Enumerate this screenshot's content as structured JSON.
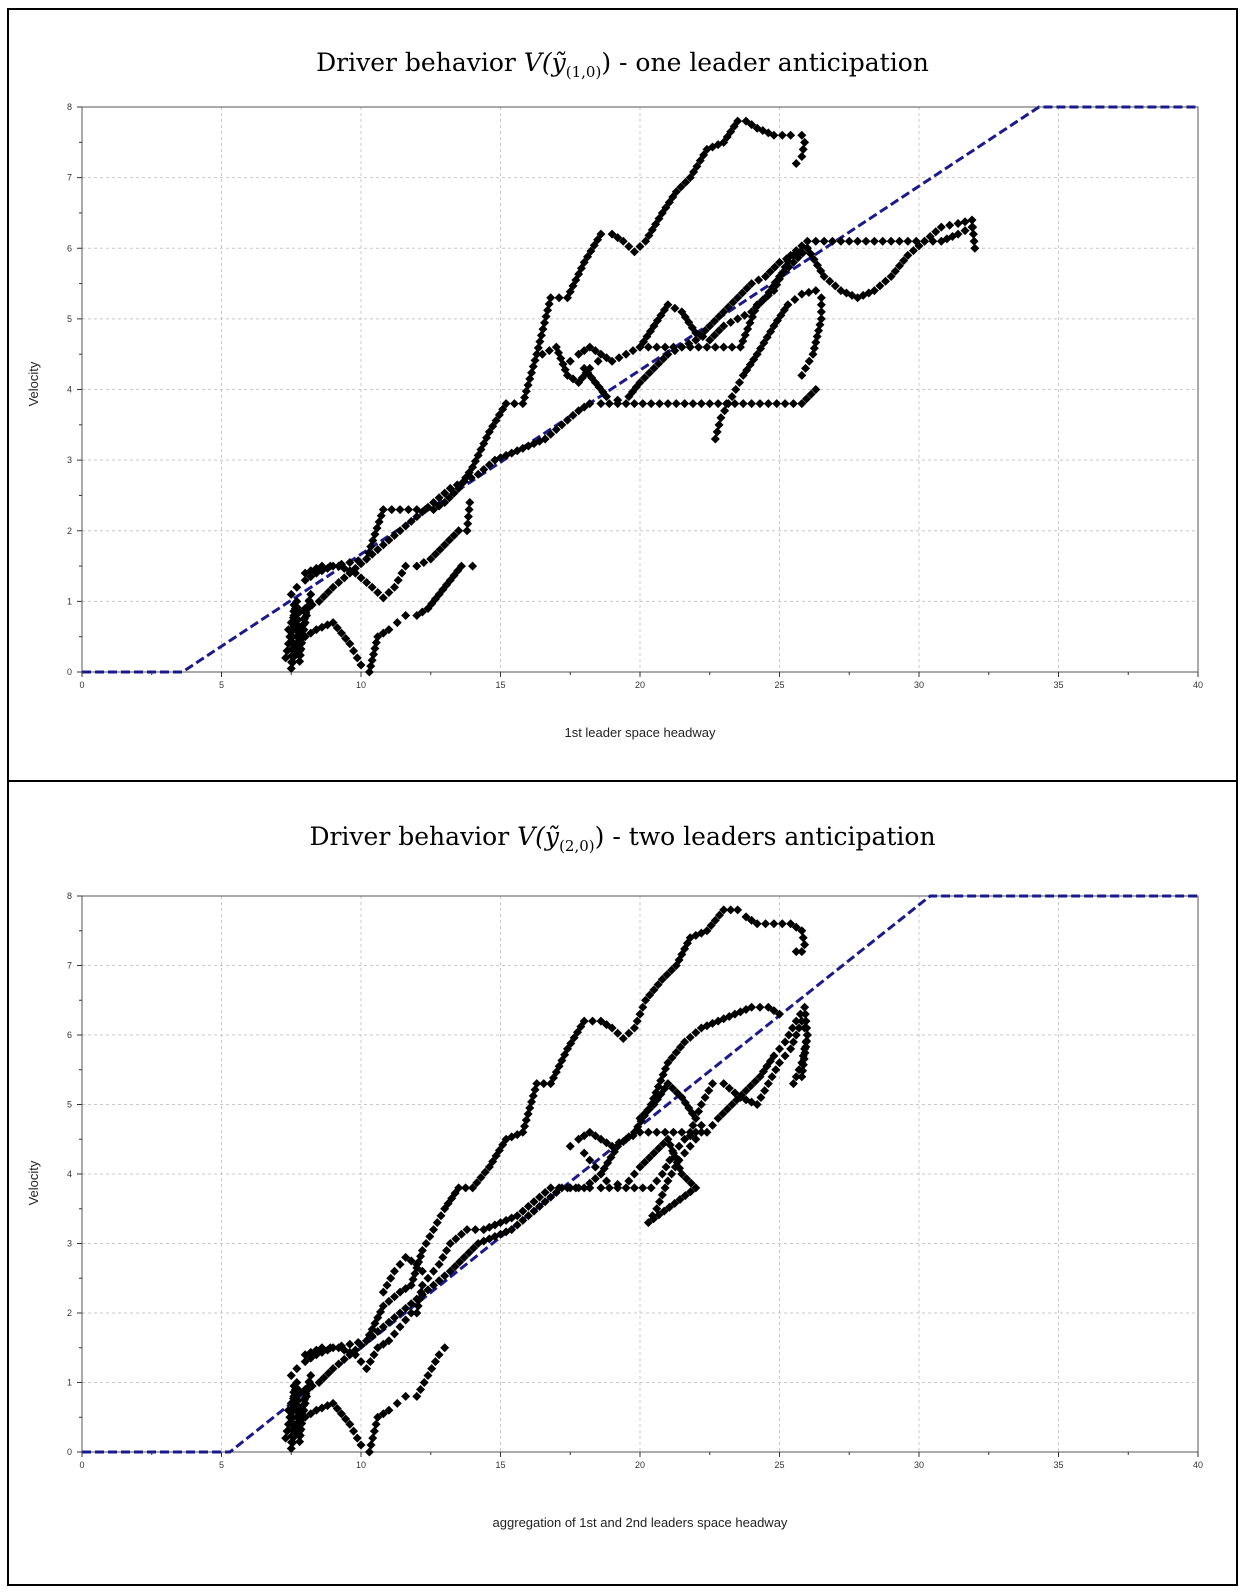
{
  "charts": [
    {
      "title_prefix": "Driver behavior ",
      "title_fn": "V(ỹ",
      "title_sub": "(1,0)",
      "title_close": ")",
      "title_suffix": " - one leader anticipation",
      "xlabel": "1st leader space headway",
      "ylabel": "Velocity"
    },
    {
      "title_prefix": "Driver behavior ",
      "title_fn": "V(ỹ",
      "title_sub": "(2,0)",
      "title_close": ")",
      "title_suffix": " - two leaders anticipation",
      "xlabel": "aggregation of 1st and 2nd leaders space headway",
      "ylabel": "Velocity"
    }
  ],
  "chart_data": [
    {
      "type": "scatter",
      "title": "Driver behavior V(ỹ(1,0)) - one leader anticipation",
      "xlabel": "1st leader space headway",
      "ylabel": "Velocity",
      "xlim": [
        0,
        40
      ],
      "ylim": [
        0,
        8
      ],
      "xticks": [
        0,
        5,
        10,
        15,
        20,
        25,
        30,
        35,
        40
      ],
      "yticks": [
        0,
        1,
        2,
        3,
        4,
        5,
        6,
        7,
        8
      ],
      "grid": true,
      "colors": {
        "points": "#000000",
        "model_line": "#1a1a8c"
      },
      "model_line": {
        "x": [
          0,
          3.6,
          34.3,
          40
        ],
        "y": [
          0,
          0,
          8,
          8
        ],
        "style": "dashed"
      },
      "series": [
        {
          "x": [
            7.5,
            7.7,
            8.0,
            8.4,
            9.0,
            9.6,
            10.2,
            10.8,
            11.4,
            12.0,
            12.6,
            13.0,
            13.5,
            14.0,
            14.6,
            15.2,
            15.8,
            16.3,
            16.8,
            17.4,
            18.0,
            18.6,
            19.0,
            19.4,
            19.8,
            20.2,
            20.8,
            21.3,
            21.8,
            22.4,
            23.0,
            23.5,
            23.8,
            24.2,
            24.8,
            25.4,
            25.8,
            25.9,
            25.8,
            25.6
          ],
          "y": [
            1.1,
            1.2,
            1.3,
            1.4,
            1.5,
            1.55,
            1.6,
            2.3,
            2.3,
            2.3,
            2.3,
            2.4,
            2.6,
            2.9,
            3.4,
            3.8,
            3.8,
            4.5,
            5.3,
            5.3,
            5.8,
            6.2,
            6.2,
            6.1,
            5.95,
            6.1,
            6.5,
            6.8,
            7.0,
            7.4,
            7.5,
            7.8,
            7.8,
            7.7,
            7.6,
            7.6,
            7.6,
            7.5,
            7.3,
            7.2
          ]
        },
        {
          "x": [
            7.4,
            7.6,
            8.0,
            8.5,
            9.0,
            9.6,
            10.2,
            10.8,
            11.4,
            12.0,
            12.6,
            13.2,
            13.7,
            14.2,
            14.8,
            15.4,
            16.0,
            16.6,
            17.2,
            17.8,
            18.2,
            18.6,
            19.2,
            19.8,
            20.4,
            21.0,
            21.6,
            22.2,
            22.8,
            23.4,
            24.0,
            24.6,
            25.2,
            25.8,
            26.3
          ],
          "y": [
            0.6,
            0.8,
            0.9,
            1.0,
            1.2,
            1.4,
            1.6,
            1.8,
            2.0,
            2.2,
            2.4,
            2.6,
            2.7,
            2.8,
            3.0,
            3.1,
            3.2,
            3.3,
            3.5,
            3.7,
            3.8,
            3.8,
            3.8,
            3.8,
            3.8,
            3.8,
            3.8,
            3.8,
            3.8,
            3.8,
            3.8,
            3.8,
            3.8,
            3.8,
            4.0
          ]
        },
        {
          "x": [
            25.8,
            26.2,
            26.5,
            26.5,
            26.3,
            25.8,
            25.3,
            24.8,
            24.2,
            23.7,
            23.3,
            22.9,
            22.7
          ],
          "y": [
            4.2,
            4.5,
            5.0,
            5.3,
            5.4,
            5.35,
            5.2,
            4.9,
            4.5,
            4.2,
            3.9,
            3.6,
            3.3
          ]
        },
        {
          "x": [
            17.5,
            17.8,
            18.2,
            18.6,
            19.0,
            19.5,
            20.0,
            20.6,
            21.2,
            21.8,
            22.4,
            23.0,
            23.6,
            24.2,
            24.8,
            25.4,
            26.0,
            26.6,
            27.2,
            27.8,
            28.4,
            29.0,
            29.6,
            30.2,
            30.8,
            31.4,
            31.9
          ],
          "y": [
            4.4,
            4.5,
            4.6,
            4.5,
            4.4,
            4.5,
            4.6,
            4.6,
            4.6,
            4.6,
            4.6,
            4.6,
            4.6,
            5.2,
            5.4,
            5.9,
            6.1,
            6.1,
            6.1,
            6.1,
            6.1,
            6.1,
            6.1,
            6.1,
            6.1,
            6.2,
            6.3
          ]
        },
        {
          "x": [
            20.0,
            20.5,
            21.0,
            21.5,
            22.0,
            22.5,
            23.0,
            23.5,
            24.0,
            24.5,
            25.0,
            25.5,
            26.0,
            26.6,
            27.2,
            27.8,
            28.4,
            29.0,
            29.6,
            30.2,
            30.8,
            31.4,
            31.9,
            32.0
          ],
          "y": [
            4.6,
            4.9,
            5.2,
            5.1,
            4.8,
            4.7,
            4.9,
            5.0,
            5.1,
            5.3,
            5.6,
            5.8,
            6.0,
            5.6,
            5.4,
            5.3,
            5.4,
            5.6,
            5.9,
            6.1,
            6.3,
            6.35,
            6.4,
            6.0
          ]
        },
        {
          "x": [
            18.0,
            18.4,
            18.8,
            19.2,
            19.6,
            20.0,
            20.5,
            21.0,
            21.5,
            22.0,
            22.5,
            23.0,
            23.5,
            24.0,
            24.5,
            25.0,
            25.5,
            26.0
          ],
          "y": [
            4.3,
            4.1,
            3.9,
            3.85,
            3.9,
            4.1,
            4.3,
            4.5,
            4.6,
            4.7,
            4.9,
            5.1,
            5.3,
            5.5,
            5.6,
            5.8,
            5.9,
            6.0
          ]
        },
        {
          "x": [
            7.6,
            8.0,
            8.4,
            9.0,
            9.6,
            10.0,
            10.3,
            10.6,
            11.0,
            11.3,
            11.6,
            12.0,
            12.4,
            12.8,
            13.2,
            13.6,
            14.0
          ],
          "y": [
            0.4,
            0.5,
            0.6,
            0.7,
            0.4,
            0.1,
            0.0,
            0.5,
            0.6,
            0.7,
            0.8,
            0.8,
            0.9,
            1.1,
            1.3,
            1.5,
            1.5
          ]
        },
        {
          "x": [
            8.0,
            8.6,
            9.2,
            9.8,
            10.4,
            10.8,
            11.2,
            11.6,
            12.0,
            12.5,
            13.0,
            13.5,
            13.8,
            13.9
          ],
          "y": [
            1.4,
            1.5,
            1.5,
            1.4,
            1.2,
            1.05,
            1.2,
            1.5,
            1.5,
            1.6,
            1.8,
            2.0,
            2.0,
            2.4
          ]
        },
        {
          "x": [
            7.3,
            7.4,
            7.5,
            7.6,
            7.7,
            7.8,
            7.9,
            8.0,
            8.1,
            8.2,
            7.5,
            7.6,
            7.8,
            8.0
          ],
          "y": [
            0.2,
            0.4,
            0.6,
            0.8,
            1.0,
            0.3,
            0.5,
            0.7,
            0.9,
            1.1,
            0.05,
            0.95,
            0.15,
            0.85
          ]
        },
        {
          "x": [
            16.5,
            17.0,
            17.4,
            17.8,
            18.2,
            18.5
          ],
          "y": [
            4.5,
            4.6,
            4.2,
            4.1,
            4.3,
            4.4
          ]
        }
      ]
    },
    {
      "type": "scatter",
      "title": "Driver behavior V(ỹ(2,0)) - two leaders anticipation",
      "xlabel": "aggregation of 1st and 2nd leaders space headway",
      "ylabel": "Velocity",
      "xlim": [
        0,
        40
      ],
      "ylim": [
        0,
        8
      ],
      "xticks": [
        0,
        5,
        10,
        15,
        20,
        25,
        30,
        35,
        40
      ],
      "yticks": [
        0,
        1,
        2,
        3,
        4,
        5,
        6,
        7,
        8
      ],
      "grid": true,
      "colors": {
        "points": "#000000",
        "model_line": "#1a1a8c"
      },
      "model_line": {
        "x": [
          0,
          5.3,
          30.4,
          40
        ],
        "y": [
          0,
          0,
          8,
          8
        ],
        "style": "dashed"
      },
      "series": [
        {
          "x": [
            7.5,
            7.7,
            8.0,
            8.4,
            9.0,
            9.6,
            10.2,
            10.8,
            11.4,
            11.8,
            12.2,
            12.6,
            13.0,
            13.5,
            14.0,
            14.6,
            15.2,
            15.8,
            16.3,
            16.8,
            17.4,
            18.0,
            18.6,
            19.0,
            19.4,
            19.8,
            20.2,
            20.8,
            21.3,
            21.8,
            22.4,
            23.0,
            23.5,
            23.8,
            24.2,
            24.8,
            25.4,
            25.8,
            25.9,
            25.8,
            25.6
          ],
          "y": [
            1.1,
            1.2,
            1.3,
            1.4,
            1.5,
            1.55,
            1.6,
            2.1,
            2.3,
            2.4,
            2.9,
            3.2,
            3.5,
            3.8,
            3.8,
            4.1,
            4.5,
            4.6,
            5.3,
            5.3,
            5.8,
            6.2,
            6.2,
            6.1,
            5.95,
            6.1,
            6.5,
            6.8,
            7.0,
            7.4,
            7.5,
            7.8,
            7.8,
            7.7,
            7.6,
            7.6,
            7.6,
            7.5,
            7.3,
            7.2,
            7.2
          ]
        },
        {
          "x": [
            7.4,
            7.6,
            8.0,
            8.5,
            9.0,
            9.6,
            10.2,
            10.8,
            11.4,
            12.0,
            12.6,
            13.2,
            13.7,
            14.2,
            14.8,
            15.4,
            16.0,
            16.6,
            17.2,
            17.8,
            18.2,
            18.6,
            19.2,
            19.8,
            20.4,
            20.8,
            21.2,
            21.6,
            22.0
          ],
          "y": [
            0.6,
            0.8,
            0.9,
            1.0,
            1.2,
            1.4,
            1.6,
            1.8,
            2.0,
            2.2,
            2.4,
            2.6,
            2.8,
            3.0,
            3.1,
            3.2,
            3.4,
            3.6,
            3.8,
            3.8,
            3.8,
            3.8,
            3.8,
            3.8,
            3.8,
            4.0,
            4.3,
            4.5,
            4.6
          ]
        },
        {
          "x": [
            10.8,
            11.2,
            11.6,
            12.0,
            12.4,
            12.8,
            13.2,
            13.8,
            14.4,
            15.0,
            15.6,
            16.2,
            16.8,
            17.4,
            18.0,
            18.6,
            19.2,
            19.8,
            20.4,
            21.0,
            21.6,
            22.2,
            22.8,
            23.4,
            24.0,
            24.6,
            25.0
          ],
          "y": [
            2.3,
            2.6,
            2.8,
            2.7,
            2.5,
            2.7,
            3.0,
            3.2,
            3.2,
            3.3,
            3.4,
            3.6,
            3.8,
            3.8,
            3.8,
            4.0,
            4.4,
            4.6,
            5.0,
            5.6,
            5.9,
            6.1,
            6.2,
            6.3,
            6.4,
            6.4,
            6.3
          ]
        },
        {
          "x": [
            17.5,
            17.8,
            18.2,
            18.6,
            19.0,
            19.5,
            20.0,
            20.6,
            21.2,
            21.8,
            22.2,
            22.6,
            23.0,
            23.6,
            24.2,
            24.6,
            25.0,
            25.4,
            25.8,
            26.0,
            25.8,
            25.5
          ],
          "y": [
            4.4,
            4.5,
            4.6,
            4.5,
            4.4,
            4.5,
            4.6,
            4.6,
            4.6,
            4.6,
            5.0,
            5.3,
            5.3,
            5.1,
            5.0,
            5.3,
            5.6,
            5.8,
            6.2,
            6.0,
            5.6,
            5.3
          ]
        },
        {
          "x": [
            20.0,
            20.5,
            21.0,
            21.5,
            22.0,
            22.4,
            22.8,
            23.3,
            23.8,
            24.3,
            24.8,
            25.2,
            25.6,
            25.9,
            26.0,
            25.8
          ],
          "y": [
            4.8,
            5.0,
            5.3,
            5.1,
            4.8,
            4.6,
            4.8,
            5.0,
            5.2,
            5.4,
            5.7,
            5.9,
            6.2,
            6.4,
            6.0,
            5.4
          ]
        },
        {
          "x": [
            18.0,
            18.4,
            18.8,
            19.2,
            19.6,
            20.0,
            20.5,
            21.0,
            21.5,
            22.0,
            20.3,
            20.6,
            21.0,
            21.4,
            21.8,
            22.2
          ],
          "y": [
            4.3,
            4.1,
            3.9,
            3.85,
            3.9,
            4.1,
            4.3,
            4.5,
            4.0,
            3.8,
            3.3,
            3.5,
            3.9,
            4.2,
            4.4,
            4.6
          ]
        },
        {
          "x": [
            7.6,
            8.0,
            8.4,
            9.0,
            9.6,
            10.0,
            10.3,
            10.6,
            11.0,
            11.3,
            11.6,
            12.0,
            12.4,
            12.8,
            13.0
          ],
          "y": [
            0.4,
            0.5,
            0.6,
            0.7,
            0.4,
            0.1,
            0.0,
            0.5,
            0.6,
            0.7,
            0.8,
            0.8,
            1.1,
            1.4,
            1.5
          ]
        },
        {
          "x": [
            8.0,
            8.6,
            9.2,
            9.8,
            10.2,
            10.6,
            11.0,
            11.4,
            11.8,
            12.0,
            12.2
          ],
          "y": [
            1.4,
            1.5,
            1.5,
            1.4,
            1.2,
            1.5,
            1.6,
            1.8,
            2.0,
            2.0,
            2.4
          ]
        },
        {
          "x": [
            7.3,
            7.4,
            7.5,
            7.6,
            7.7,
            7.8,
            7.9,
            8.0,
            8.1,
            8.2,
            7.5,
            7.6,
            7.8,
            8.0
          ],
          "y": [
            0.2,
            0.4,
            0.6,
            0.8,
            1.0,
            0.3,
            0.5,
            0.7,
            0.9,
            1.1,
            0.05,
            0.95,
            0.15,
            0.85
          ]
        }
      ]
    }
  ]
}
